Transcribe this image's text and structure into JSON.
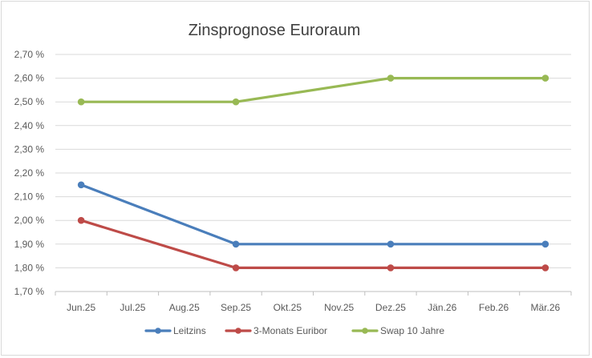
{
  "chart_data": {
    "type": "line",
    "title": "Zinsprognose Euroraum",
    "xlabel": "",
    "ylabel": "",
    "categories": [
      "Jun.25",
      "Jul.25",
      "Aug.25",
      "Sep.25",
      "Okt.25",
      "Nov.25",
      "Dez.25",
      "Jän.26",
      "Feb.26",
      "Mär.26"
    ],
    "ylim": [
      1.7,
      2.7
    ],
    "ytick_step": 0.1,
    "ytick_labels": [
      "1,70 %",
      "1,80 %",
      "1,90 %",
      "2,00 %",
      "2,10 %",
      "2,20 %",
      "2,30 %",
      "2,40 %",
      "2,50 %",
      "2,60 %",
      "2,70 %"
    ],
    "grid": true,
    "legend_position": "bottom",
    "series": [
      {
        "name": "Leitzins",
        "color": "#4a7ebb",
        "points": [
          {
            "x": "Jun.25",
            "y": 2.15
          },
          {
            "x": "Sep.25",
            "y": 1.9
          },
          {
            "x": "Dez.25",
            "y": 1.9
          },
          {
            "x": "Mär.26",
            "y": 1.9
          }
        ]
      },
      {
        "name": "3-Monats Euribor",
        "color": "#be4b48",
        "points": [
          {
            "x": "Jun.25",
            "y": 2.0
          },
          {
            "x": "Sep.25",
            "y": 1.8
          },
          {
            "x": "Dez.25",
            "y": 1.8
          },
          {
            "x": "Mär.26",
            "y": 1.8
          }
        ]
      },
      {
        "name": "Swap 10 Jahre",
        "color": "#98b954",
        "points": [
          {
            "x": "Jun.25",
            "y": 2.5
          },
          {
            "x": "Sep.25",
            "y": 2.5
          },
          {
            "x": "Dez.25",
            "y": 2.6
          },
          {
            "x": "Mär.26",
            "y": 2.6
          }
        ]
      }
    ]
  }
}
